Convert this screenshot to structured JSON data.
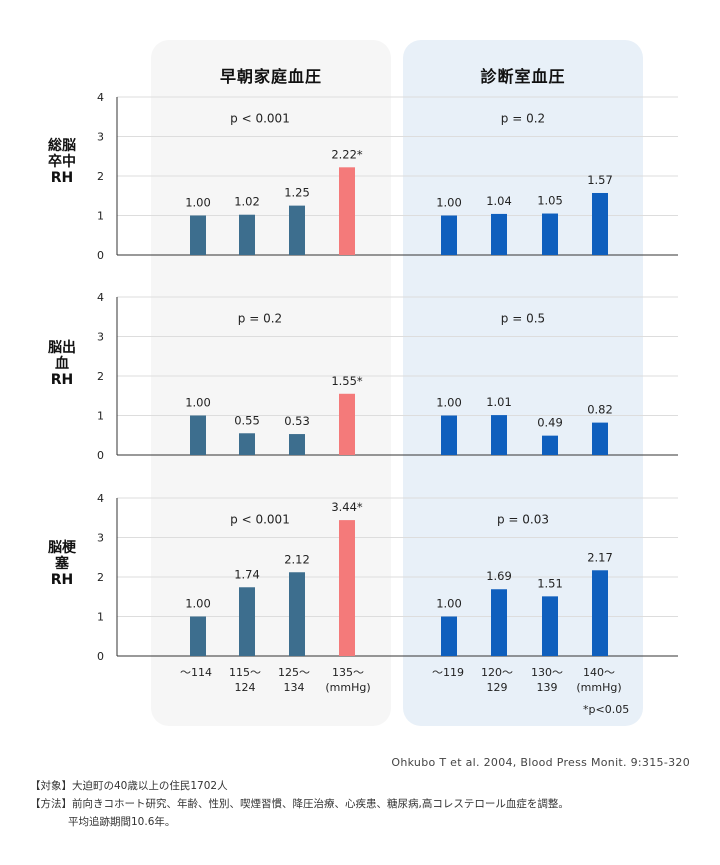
{
  "panels": {
    "home": {
      "title": "早朝家庭血圧"
    },
    "office": {
      "title": "診断室血圧"
    }
  },
  "x_ticks": {
    "home": [
      "〜114",
      "115〜\n124",
      "125〜\n134",
      "135〜\n(mmHg)"
    ],
    "office": [
      "〜119",
      "120〜\n129",
      "130〜\n139",
      "140〜\n(mmHg)"
    ]
  },
  "footnote": "*p<0.05",
  "citation": "Ohkubo T et al. 2004, Blood Press Monit. 9:315-320",
  "notes": {
    "subjects": "【対象】大迫町の40歳以上の住民1702人",
    "methods": "【方法】前向きコホート研究、年齢、性別、喫煙習慣、降圧治療、心疾患、糖尿病,高コレステロール血症を調整。",
    "followup": "平均追跡期間10.6年。"
  },
  "colors": {
    "home_bar": "#3d6e8e",
    "home_bar_significant": "#f47a7a",
    "office_bar": "#0f5fbd",
    "axis": "#333333",
    "grid": "#dddddd"
  },
  "chart_data": [
    {
      "type": "bar",
      "ylabel": "総脳卒中 RH",
      "ylim": [
        0,
        4
      ],
      "yticks": [
        0,
        1,
        2,
        3,
        4
      ],
      "grid": true,
      "groups": [
        {
          "panel": "home",
          "pvalue": "p < 0.001",
          "categories": [
            "〜114",
            "115〜124",
            "125〜134",
            "135〜"
          ],
          "values": [
            1.0,
            1.02,
            1.25,
            2.22
          ],
          "labels": [
            "1.00",
            "1.02",
            "1.25",
            "2.22*"
          ],
          "significant": [
            false,
            false,
            false,
            true
          ]
        },
        {
          "panel": "office",
          "pvalue": "p = 0.2",
          "categories": [
            "〜119",
            "120〜129",
            "130〜139",
            "140〜"
          ],
          "values": [
            1.0,
            1.04,
            1.05,
            1.57
          ],
          "labels": [
            "1.00",
            "1.04",
            "1.05",
            "1.57"
          ],
          "significant": [
            false,
            false,
            false,
            false
          ]
        }
      ]
    },
    {
      "type": "bar",
      "ylabel": "脳出血 RH",
      "ylim": [
        0,
        4
      ],
      "yticks": [
        0,
        1,
        2,
        3,
        4
      ],
      "grid": true,
      "groups": [
        {
          "panel": "home",
          "pvalue": "p = 0.2",
          "categories": [
            "〜114",
            "115〜124",
            "125〜134",
            "135〜"
          ],
          "values": [
            1.0,
            0.55,
            0.53,
            1.55
          ],
          "labels": [
            "1.00",
            "0.55",
            "0.53",
            "1.55*"
          ],
          "significant": [
            false,
            false,
            false,
            true
          ]
        },
        {
          "panel": "office",
          "pvalue": "p = 0.5",
          "categories": [
            "〜119",
            "120〜129",
            "130〜139",
            "140〜"
          ],
          "values": [
            1.0,
            1.01,
            0.49,
            0.82
          ],
          "labels": [
            "1.00",
            "1.01",
            "0.49",
            "0.82"
          ],
          "significant": [
            false,
            false,
            false,
            false
          ]
        }
      ]
    },
    {
      "type": "bar",
      "ylabel": "脳梗塞 RH",
      "ylim": [
        0,
        4
      ],
      "yticks": [
        0,
        1,
        2,
        3,
        4
      ],
      "grid": true,
      "groups": [
        {
          "panel": "home",
          "pvalue": "p < 0.001",
          "categories": [
            "〜114",
            "115〜124",
            "125〜134",
            "135〜"
          ],
          "values": [
            1.0,
            1.74,
            2.12,
            3.44
          ],
          "labels": [
            "1.00",
            "1.74",
            "2.12",
            "3.44*"
          ],
          "significant": [
            false,
            false,
            false,
            true
          ]
        },
        {
          "panel": "office",
          "pvalue": "p = 0.03",
          "categories": [
            "〜119",
            "120〜129",
            "130〜139",
            "140〜"
          ],
          "values": [
            1.0,
            1.69,
            1.51,
            2.17
          ],
          "labels": [
            "1.00",
            "1.69",
            "1.51",
            "2.17"
          ],
          "significant": [
            false,
            false,
            false,
            false
          ]
        }
      ]
    }
  ]
}
